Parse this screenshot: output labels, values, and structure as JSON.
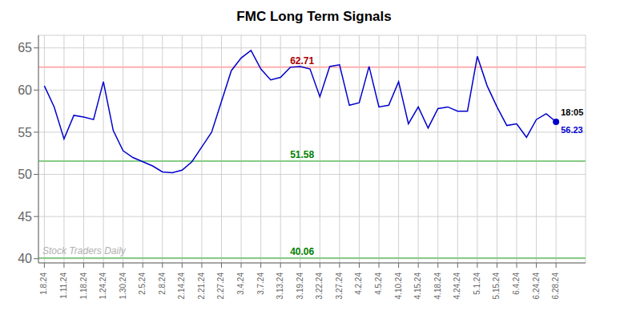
{
  "chart_data": {
    "type": "line",
    "title": "FMC Long Term Signals",
    "x": [
      0.0,
      0.5,
      1.0,
      1.5,
      2.0,
      2.5,
      3.0,
      3.5,
      4.0,
      4.5,
      5.0,
      5.5,
      6.0,
      6.5,
      7.0,
      7.5,
      8.5,
      9.5,
      10.0,
      10.5,
      11.0,
      11.5,
      12.0,
      12.5,
      13.0,
      13.5,
      14.0,
      14.5,
      15.0,
      15.5,
      16.0,
      16.5,
      17.0,
      17.5,
      18.0,
      18.5,
      19.0,
      19.5,
      20.0,
      20.5,
      21.0,
      21.5,
      22.0,
      22.5,
      23.0,
      23.5,
      24.0,
      24.5,
      25.0,
      25.5,
      26.0
    ],
    "values": [
      60.5,
      58.0,
      54.2,
      57.0,
      56.8,
      56.5,
      61.0,
      55.2,
      52.8,
      52.0,
      51.5,
      51.0,
      50.3,
      50.2,
      50.5,
      51.5,
      55.0,
      62.3,
      63.8,
      64.7,
      62.5,
      61.2,
      61.5,
      62.71,
      62.8,
      62.5,
      59.2,
      62.8,
      63.0,
      58.2,
      58.5,
      62.8,
      58.0,
      58.2,
      61.0,
      56.0,
      58.0,
      55.5,
      57.8,
      58.0,
      57.5,
      57.5,
      64.0,
      60.5,
      58.0,
      55.8,
      56.0,
      54.4,
      56.5,
      57.2,
      56.23
    ],
    "color": "#0000cc",
    "xlim": [
      -0.3,
      27.5
    ],
    "xticks": [
      {
        "value": 0,
        "label": "1.8.24"
      },
      {
        "value": 1,
        "label": "1.11.24"
      },
      {
        "value": 2,
        "label": "1.18.24"
      },
      {
        "value": 3,
        "label": "1.24.24"
      },
      {
        "value": 4,
        "label": "1.30.24"
      },
      {
        "value": 5,
        "label": "2.5.24"
      },
      {
        "value": 6,
        "label": "2.8.24"
      },
      {
        "value": 7,
        "label": "2.14.24"
      },
      {
        "value": 8,
        "label": "2.21.24"
      },
      {
        "value": 9,
        "label": "2.27.24"
      },
      {
        "value": 10,
        "label": "3.4.24"
      },
      {
        "value": 11,
        "label": "3.7.24"
      },
      {
        "value": 12,
        "label": "3.13.24"
      },
      {
        "value": 13,
        "label": "3.19.24"
      },
      {
        "value": 14,
        "label": "3.22.24"
      },
      {
        "value": 15,
        "label": "3.27.24"
      },
      {
        "value": 16,
        "label": "4.2.24"
      },
      {
        "value": 17,
        "label": "4.5.24"
      },
      {
        "value": 18,
        "label": "4.10.24"
      },
      {
        "value": 19,
        "label": "4.15.24"
      },
      {
        "value": 20,
        "label": "4.18.24"
      },
      {
        "value": 21,
        "label": "4.24.24"
      },
      {
        "value": 22,
        "label": "5.1.24"
      },
      {
        "value": 23,
        "label": "5.15.24"
      },
      {
        "value": 24,
        "label": "6.4.24"
      },
      {
        "value": 25,
        "label": "6.24.24"
      },
      {
        "value": 26,
        "label": "6.28.24"
      }
    ],
    "ylim": [
      39.5,
      66.5
    ],
    "yticks": [
      40,
      45,
      50,
      55,
      60,
      65
    ],
    "grid": true,
    "reference_lines": [
      {
        "y": 62.71,
        "label": "62.71",
        "color": "#ffb0b0"
      },
      {
        "y": 51.58,
        "label": "51.58",
        "color": "#88cc88"
      },
      {
        "y": 40.06,
        "label": "40.06",
        "color": "#88cc88"
      }
    ],
    "annotations": [
      "18:05",
      "56.23"
    ],
    "watermark": "Stock Traders Daily"
  }
}
